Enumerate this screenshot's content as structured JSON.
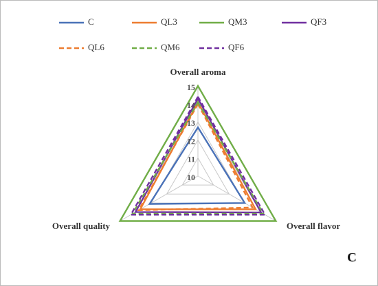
{
  "chart_data": {
    "type": "radar",
    "categories": [
      "Overall aroma",
      "Overall flavor",
      "Overall quality"
    ],
    "ylim": [
      10,
      15
    ],
    "yticks": [
      10,
      11,
      12,
      13,
      14,
      15
    ],
    "grid": true,
    "panel_label": "C",
    "series": [
      {
        "name": "C",
        "color": "#4a72b8",
        "dashed": false,
        "values": [
          12.7,
          13.0,
          13.1
        ]
      },
      {
        "name": "QL3",
        "color": "#ed7d31",
        "dashed": false,
        "values": [
          14.1,
          13.7,
          13.7
        ]
      },
      {
        "name": "QM3",
        "color": "#70ad47",
        "dashed": false,
        "values": [
          15,
          15,
          15
        ]
      },
      {
        "name": "QF3",
        "color": "#7030a0",
        "dashed": false,
        "values": [
          14.3,
          14.05,
          14.0
        ]
      },
      {
        "name": "QL6",
        "color": "#ed7d31",
        "dashed": true,
        "values": [
          14.0,
          13.5,
          13.8
        ]
      },
      {
        "name": "QM6",
        "color": "#70ad47",
        "dashed": true,
        "values": [
          14.1,
          14.2,
          14.2
        ]
      },
      {
        "name": "QF6",
        "color": "#7030a0",
        "dashed": true,
        "values": [
          14.4,
          14.3,
          14.3
        ]
      }
    ]
  }
}
